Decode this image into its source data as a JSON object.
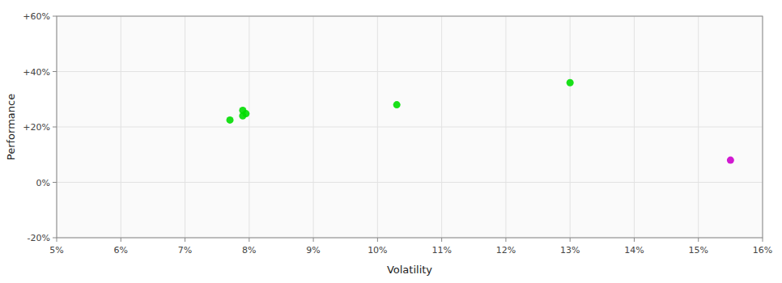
{
  "chart_data": {
    "type": "scatter",
    "x_label": "Volatility",
    "y_label": "Performance",
    "xlim": [
      0.05,
      0.16
    ],
    "ylim": [
      -0.2,
      0.6
    ],
    "xticks": [
      {
        "value": 0.05,
        "label": "5%"
      },
      {
        "value": 0.06,
        "label": "6%"
      },
      {
        "value": 0.07,
        "label": "7%"
      },
      {
        "value": 0.08,
        "label": "8%"
      },
      {
        "value": 0.09,
        "label": "9%"
      },
      {
        "value": 0.1,
        "label": "10%"
      },
      {
        "value": 0.11,
        "label": "11%"
      },
      {
        "value": 0.12,
        "label": "12%"
      },
      {
        "value": 0.13,
        "label": "13%"
      },
      {
        "value": 0.14,
        "label": "14%"
      },
      {
        "value": 0.15,
        "label": "15%"
      },
      {
        "value": 0.16,
        "label": "16%"
      }
    ],
    "yticks": [
      {
        "value": -0.2,
        "label": "-20%"
      },
      {
        "value": 0.0,
        "label": "0%"
      },
      {
        "value": 0.2,
        "label": "+20%"
      },
      {
        "value": 0.4,
        "label": "+40%"
      },
      {
        "value": 0.6,
        "label": "+60%"
      }
    ],
    "grid": true,
    "series": [
      {
        "color": "#00dd00",
        "x": [
          0.077,
          0.079,
          0.079,
          0.0795,
          0.103,
          0.13
        ],
        "values": [
          0.225,
          0.26,
          0.24,
          0.248,
          0.28,
          0.36
        ]
      },
      {
        "color": "#cc00cc",
        "x": [
          0.155
        ],
        "values": [
          0.08
        ]
      }
    ]
  }
}
